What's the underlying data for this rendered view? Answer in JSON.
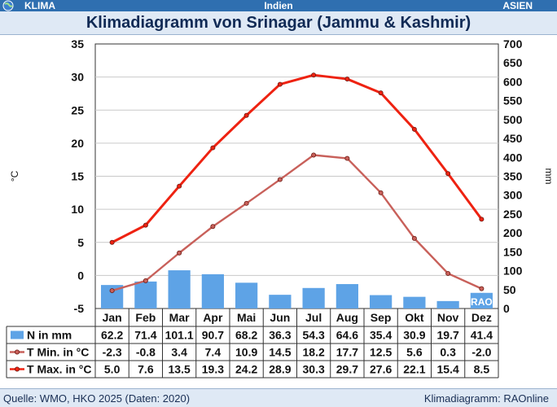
{
  "header": {
    "left_label": "KLIMA",
    "center_label": "Indien",
    "right_label": "ASIEN",
    "title": "Klimadiagramm von Srinagar (Jammu & Kashmir)"
  },
  "footer": {
    "source": "Quelle: WMO, HKO 2025 (Daten: 2020)",
    "credit": "Klimadiagramm: RAOnline"
  },
  "watermark": "RAO",
  "colors": {
    "bar": "#5ea3e6",
    "tmin": "#c8605a",
    "tmax": "#ee2211",
    "header_bg": "#2f6fb0",
    "title_bg": "#dfe9f5"
  },
  "chart_data": {
    "type": "bar+line",
    "categories": [
      "Jan",
      "Feb",
      "Mar",
      "Apr",
      "Mai",
      "Jun",
      "Jul",
      "Aug",
      "Sep",
      "Okt",
      "Nov",
      "Dez"
    ],
    "y_left": {
      "label": "°C",
      "ylim": [
        -5,
        35
      ],
      "ticks": [
        -5,
        0,
        5,
        10,
        15,
        20,
        25,
        30,
        35
      ]
    },
    "y_right": {
      "label": "mm",
      "ylim": [
        0,
        700
      ],
      "ticks": [
        0,
        50,
        100,
        150,
        200,
        250,
        300,
        350,
        400,
        450,
        500,
        550,
        600,
        650,
        700
      ]
    },
    "grid": true,
    "legend": "table-below",
    "series": [
      {
        "name": "N in mm",
        "type": "bar",
        "axis": "right",
        "values": [
          62.2,
          71.4,
          101.1,
          90.7,
          68.2,
          36.3,
          54.3,
          64.6,
          35.4,
          30.9,
          19.7,
          41.4
        ]
      },
      {
        "name": "T Min. in °C",
        "type": "line",
        "axis": "left",
        "values": [
          -2.3,
          -0.8,
          3.4,
          7.4,
          10.9,
          14.5,
          18.2,
          17.7,
          12.5,
          5.6,
          0.3,
          -2.0
        ]
      },
      {
        "name": "T Max. in °C",
        "type": "line",
        "axis": "left",
        "values": [
          5.0,
          7.6,
          13.5,
          19.3,
          24.2,
          28.9,
          30.3,
          29.7,
          27.6,
          22.1,
          15.4,
          8.5
        ]
      }
    ]
  }
}
